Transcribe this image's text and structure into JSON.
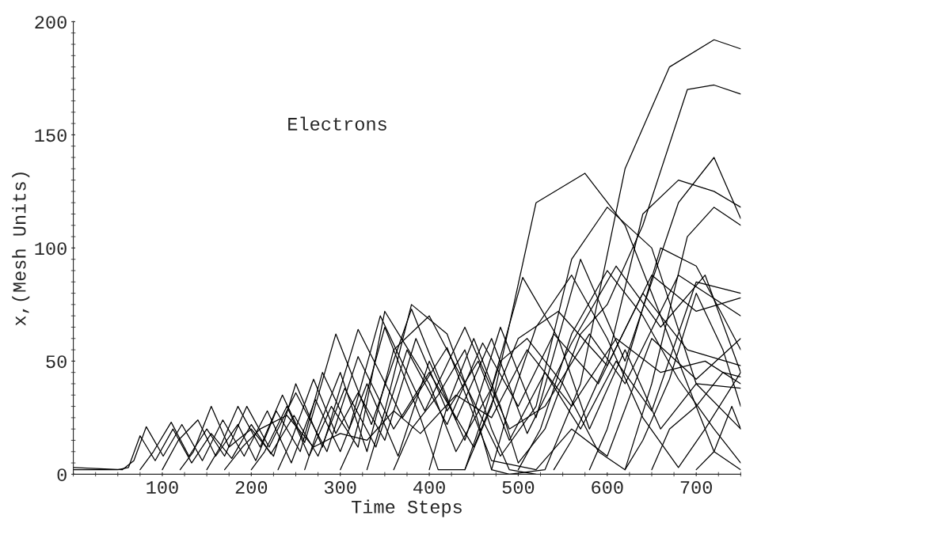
{
  "chart_data": {
    "type": "line",
    "xlabel": "Time Steps",
    "ylabel": "x,(Mesh Units)",
    "annotations": [
      "Electrons"
    ],
    "xlim": [
      0,
      750
    ],
    "ylim": [
      0,
      200
    ],
    "xticks": [
      100,
      200,
      300,
      400,
      500,
      600,
      700
    ],
    "yticks": [
      0,
      50,
      100,
      150,
      200
    ],
    "grid": false,
    "legend": false,
    "marker": "none",
    "line_style": "solid",
    "series": [
      {
        "color": "#000000",
        "x": [
          0,
          55,
          68,
          82,
          101,
          122,
          145,
          168,
          192,
          218,
          245,
          272,
          300,
          330,
          365,
          400,
          440,
          480,
          520,
          570,
          620,
          680,
          720,
          750
        ],
        "values": [
          3,
          2,
          6,
          21,
          8,
          22,
          6,
          24,
          8,
          28,
          5,
          33,
          10,
          40,
          8,
          50,
          15,
          65,
          25,
          95,
          50,
          120,
          140,
          113
        ]
      },
      {
        "color": "#000000",
        "x": [
          0,
          50,
          62,
          75,
          92,
          112,
          133,
          155,
          178,
          200,
          222,
          248,
          275,
          305,
          340,
          375,
          420,
          460,
          500,
          540,
          590,
          640,
          690,
          750
        ],
        "values": [
          2,
          2,
          3,
          17,
          6,
          20,
          5,
          18,
          7,
          22,
          9,
          26,
          8,
          38,
          12,
          55,
          22,
          58,
          30,
          62,
          40,
          80,
          55,
          48
        ]
      },
      {
        "color": "#000000",
        "x": [
          75,
          90,
          110,
          130,
          150,
          170,
          195,
          220,
          250,
          285,
          320,
          360,
          400,
          450,
          500,
          545,
          600,
          650,
          700,
          750
        ],
        "values": [
          2,
          10,
          23,
          8,
          20,
          8,
          30,
          12,
          36,
          10,
          52,
          20,
          45,
          12,
          60,
          72,
          48,
          88,
          72,
          78
        ]
      },
      {
        "color": "#000000",
        "x": [
          100,
          118,
          140,
          160,
          185,
          205,
          228,
          255,
          280,
          310,
          345,
          395,
          440,
          490,
          530,
          580,
          620,
          680,
          750
        ],
        "values": [
          2,
          15,
          24,
          8,
          22,
          6,
          28,
          10,
          45,
          20,
          70,
          28,
          65,
          20,
          30,
          62,
          40,
          88,
          70
        ]
      },
      {
        "color": "#000000",
        "x": [
          120,
          135,
          155,
          175,
          200,
          225,
          250,
          280,
          320,
          370,
          420,
          470,
          520,
          560,
          600,
          650,
          700,
          750
        ],
        "values": [
          2,
          10,
          30,
          12,
          20,
          8,
          40,
          12,
          64,
          25,
          56,
          6,
          2,
          20,
          8,
          60,
          42,
          60
        ]
      },
      {
        "color": "#000000",
        "x": [
          150,
          165,
          185,
          210,
          235,
          260,
          295,
          335,
          380,
          430,
          470,
          510,
          560,
          610,
          660,
          710,
          750
        ],
        "values": [
          2,
          12,
          30,
          12,
          35,
          14,
          62,
          22,
          73,
          24,
          60,
          18,
          58,
          92,
          65,
          88,
          45
        ]
      },
      {
        "color": "#000000",
        "x": [
          170,
          190,
          210,
          240,
          270,
          300,
          330,
          360,
          390,
          430,
          470,
          510,
          560,
          610,
          660,
          710,
          750
        ],
        "values": [
          2,
          12,
          20,
          26,
          12,
          18,
          15,
          28,
          18,
          35,
          25,
          55,
          30,
          60,
          45,
          50,
          40
        ]
      },
      {
        "color": "#000000",
        "x": [
          200,
          215,
          240,
          265,
          290,
          320,
          350,
          400,
          430,
          470,
          505,
          545,
          580,
          620,
          660,
          700,
          750
        ],
        "values": [
          2,
          10,
          30,
          8,
          30,
          12,
          72,
          40,
          10,
          38,
          87,
          60,
          20,
          55,
          20,
          40,
          38
        ]
      },
      {
        "color": "#000000",
        "x": [
          230,
          245,
          270,
          295,
          320,
          350,
          385,
          420,
          455,
          490,
          530,
          570,
          610,
          650,
          700,
          750
        ],
        "values": [
          2,
          15,
          42,
          18,
          36,
          15,
          60,
          28,
          50,
          15,
          45,
          20,
          50,
          28,
          85,
          80
        ]
      },
      {
        "color": "#000000",
        "x": [
          260,
          275,
          300,
          330,
          360,
          400,
          440,
          480,
          520,
          560,
          600,
          650,
          700,
          750
        ],
        "values": [
          2,
          20,
          45,
          10,
          55,
          70,
          40,
          8,
          30,
          95,
          118,
          100,
          40,
          20
        ]
      },
      {
        "color": "#000000",
        "x": [
          300,
          315,
          350,
          390,
          410,
          440,
          470,
          520,
          575,
          620,
          670,
          720,
          750
        ],
        "values": [
          2,
          15,
          65,
          25,
          2,
          2,
          30,
          120,
          133,
          110,
          60,
          10,
          2
        ]
      },
      {
        "color": "#000000",
        "x": [
          330,
          350,
          380,
          420,
          450,
          470,
          490,
          530,
          570,
          620,
          670,
          720,
          750
        ],
        "values": [
          2,
          28,
          75,
          62,
          30,
          2,
          0,
          2,
          40,
          135,
          180,
          192,
          188
        ]
      },
      {
        "color": "#000000",
        "x": [
          360,
          380,
          410,
          440,
          470,
          490,
          520
        ],
        "values": [
          2,
          20,
          35,
          55,
          20,
          2,
          0
        ]
      },
      {
        "color": "#000000",
        "x": [
          400,
          420,
          450,
          480,
          500,
          530,
          570,
          600,
          640,
          690,
          720,
          750
        ],
        "values": [
          2,
          30,
          60,
          30,
          5,
          20,
          62,
          75,
          110,
          170,
          172,
          168
        ]
      },
      {
        "color": "#000000",
        "x": [
          440,
          460,
          480,
          510,
          550,
          590,
          620,
          650,
          690,
          720,
          750
        ],
        "values": [
          2,
          25,
          50,
          60,
          40,
          10,
          2,
          40,
          105,
          118,
          110
        ]
      },
      {
        "color": "#000000",
        "x": [
          470,
          490,
          520,
          560,
          600,
          640,
          680,
          710,
          750
        ],
        "values": [
          2,
          30,
          65,
          88,
          60,
          25,
          3,
          20,
          45
        ]
      },
      {
        "color": "#000000",
        "x": [
          500,
          525,
          560,
          600,
          640,
          680,
          720,
          750
        ],
        "values": [
          2,
          20,
          62,
          90,
          70,
          42,
          20,
          5
        ]
      },
      {
        "color": "#000000",
        "x": [
          540,
          560,
          600,
          640,
          680,
          720,
          750
        ],
        "values": [
          2,
          15,
          50,
          115,
          130,
          125,
          118
        ]
      },
      {
        "color": "#000000",
        "x": [
          580,
          600,
          630,
          660,
          700,
          730,
          750
        ],
        "values": [
          2,
          20,
          60,
          100,
          92,
          70,
          55
        ]
      },
      {
        "color": "#000000",
        "x": [
          620,
          640,
          670,
          700,
          730,
          750
        ],
        "values": [
          2,
          15,
          42,
          80,
          55,
          30
        ]
      },
      {
        "color": "#000000",
        "x": [
          650,
          670,
          700,
          730,
          750
        ],
        "values": [
          2,
          20,
          30,
          45,
          43
        ]
      },
      {
        "color": "#000000",
        "x": [
          700,
          720,
          740,
          750
        ],
        "values": [
          2,
          10,
          30,
          20
        ]
      }
    ]
  }
}
